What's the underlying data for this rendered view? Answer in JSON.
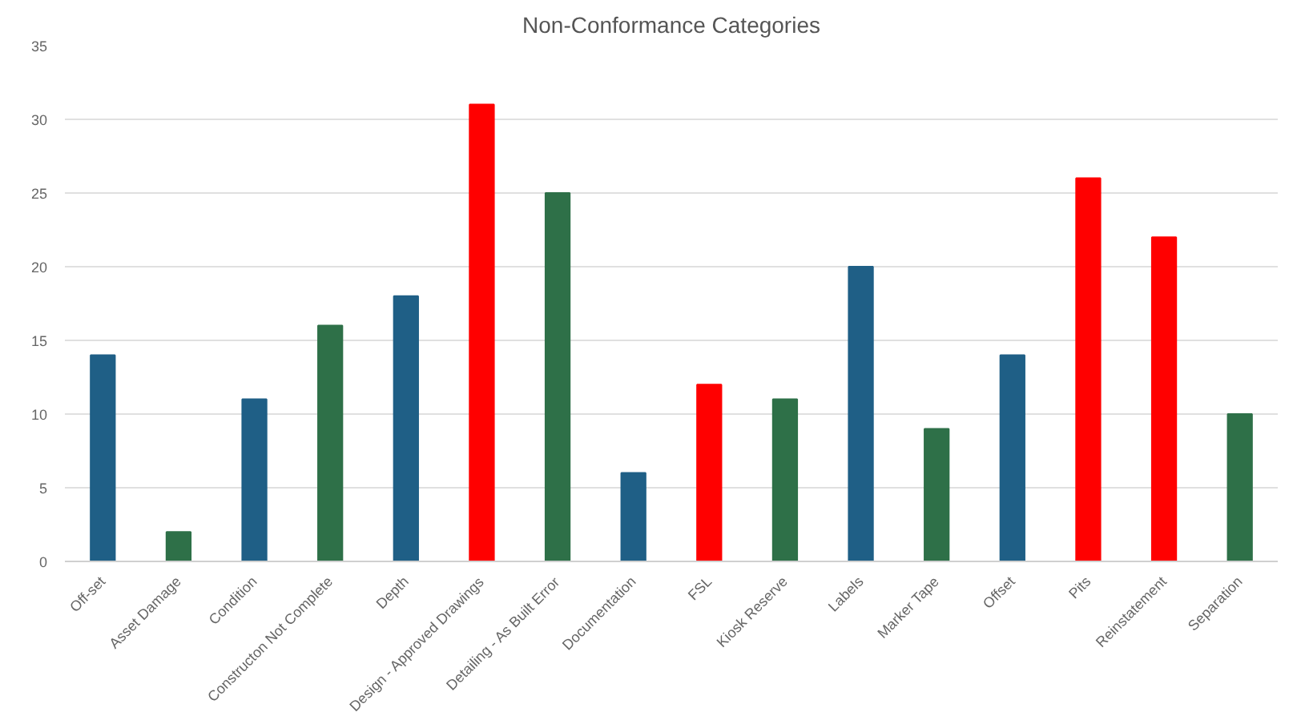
{
  "chart_data": {
    "type": "bar",
    "title": "Non-Conformance Categories",
    "categories": [
      "Off-set",
      "Asset Damage",
      "Condition",
      "Constructon Not Complete",
      "Depth",
      "Design - Approved Drawings",
      "Detailing - As Built Error",
      "Documentation",
      "FSL",
      "Kiosk Reserve",
      "Labels",
      "Marker Tape",
      "Offset",
      "Pits",
      "Reinstatement",
      "Separation"
    ],
    "values": [
      14,
      2,
      11,
      16,
      18,
      31,
      25,
      6,
      12,
      11,
      20,
      9,
      14,
      26,
      22,
      10
    ],
    "colors": [
      "#1f5f86",
      "#2e7048",
      "#1f5f86",
      "#2e7048",
      "#1f5f86",
      "#ff0000",
      "#2e7048",
      "#1f5f86",
      "#ff0000",
      "#2e7048",
      "#1f5f86",
      "#2e7048",
      "#1f5f86",
      "#ff0000",
      "#ff0000",
      "#2e7048"
    ],
    "ylim": [
      0,
      35
    ],
    "yticks": [
      0,
      5,
      10,
      15,
      20,
      25,
      30,
      35
    ],
    "grid": "y"
  }
}
